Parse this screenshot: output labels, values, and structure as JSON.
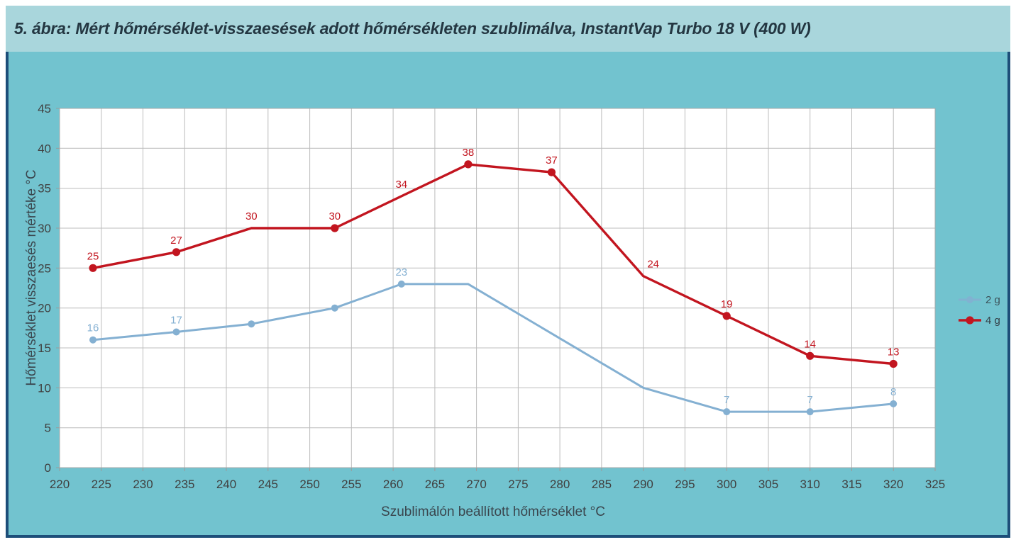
{
  "colors": {
    "page_bg": "#ffffff",
    "titlebar_bg": "#a9d6dc",
    "chart_bg": "#72c3cf",
    "frame": "#1d4e79",
    "plot_bg": "#ffffff",
    "grid": "#bcbcbc",
    "plot_border": "#a8a8a8",
    "axis_tick": "#9b9b9b",
    "tick_text": "#404040",
    "title_text": "#243742",
    "axis_title_text": "#3a464e",
    "legend_text": "#333f46",
    "series_2g": "#84b0d2",
    "series_4g": "#c2151f"
  },
  "chart_data": {
    "type": "line",
    "title": "5. ábra: Mért hőmérséklet-visszaesések adott hőmérsékleten szublimálva, InstantVap Turbo 18 V (400 W)",
    "xlabel": "Szublimálón beállított hőmérséklet °C",
    "ylabel": "Hőmérséklet visszaesés mértéke °C",
    "xlim": [
      220,
      325
    ],
    "ylim": [
      0,
      45
    ],
    "xticks": [
      220,
      225,
      230,
      235,
      240,
      245,
      250,
      255,
      260,
      265,
      270,
      275,
      280,
      285,
      290,
      295,
      300,
      305,
      310,
      315,
      320,
      325
    ],
    "yticks": [
      0,
      5,
      10,
      15,
      20,
      25,
      30,
      35,
      40,
      45
    ],
    "grid": true,
    "legend": {
      "position": "right",
      "entries": [
        "2 g",
        "4 g"
      ]
    },
    "series": [
      {
        "name": "2 g",
        "color": "#84b0d2",
        "points": [
          {
            "x": 224,
            "y": 16,
            "marker": true,
            "label": "16"
          },
          {
            "x": 234,
            "y": 17,
            "marker": true,
            "label": "17"
          },
          {
            "x": 243,
            "y": 18,
            "marker": true,
            "label": null
          },
          {
            "x": 253,
            "y": 20,
            "marker": true,
            "label": null
          },
          {
            "x": 261,
            "y": 23,
            "marker": true,
            "label": "23"
          },
          {
            "x": 269,
            "y": 23,
            "marker": false,
            "label": null
          },
          {
            "x": 290,
            "y": 10,
            "marker": false,
            "label": null
          },
          {
            "x": 300,
            "y": 7,
            "marker": true,
            "label": "7"
          },
          {
            "x": 310,
            "y": 7,
            "marker": true,
            "label": "7"
          },
          {
            "x": 320,
            "y": 8,
            "marker": true,
            "label": "8"
          }
        ]
      },
      {
        "name": "4 g",
        "color": "#c2151f",
        "points": [
          {
            "x": 224,
            "y": 25,
            "marker": true,
            "label": "25"
          },
          {
            "x": 234,
            "y": 27,
            "marker": true,
            "label": "27"
          },
          {
            "x": 243,
            "y": 30,
            "marker": false,
            "label": "30"
          },
          {
            "x": 253,
            "y": 30,
            "marker": true,
            "label": "30"
          },
          {
            "x": 261,
            "y": 34,
            "marker": false,
            "label": "34"
          },
          {
            "x": 269,
            "y": 38,
            "marker": true,
            "label": "38"
          },
          {
            "x": 279,
            "y": 37,
            "marker": true,
            "label": "37"
          },
          {
            "x": 290,
            "y": 24,
            "marker": false,
            "label": "24",
            "label_dx": 14
          },
          {
            "x": 300,
            "y": 19,
            "marker": true,
            "label": "19"
          },
          {
            "x": 310,
            "y": 14,
            "marker": true,
            "label": "14"
          },
          {
            "x": 320,
            "y": 13,
            "marker": true,
            "label": "13"
          }
        ]
      }
    ]
  }
}
